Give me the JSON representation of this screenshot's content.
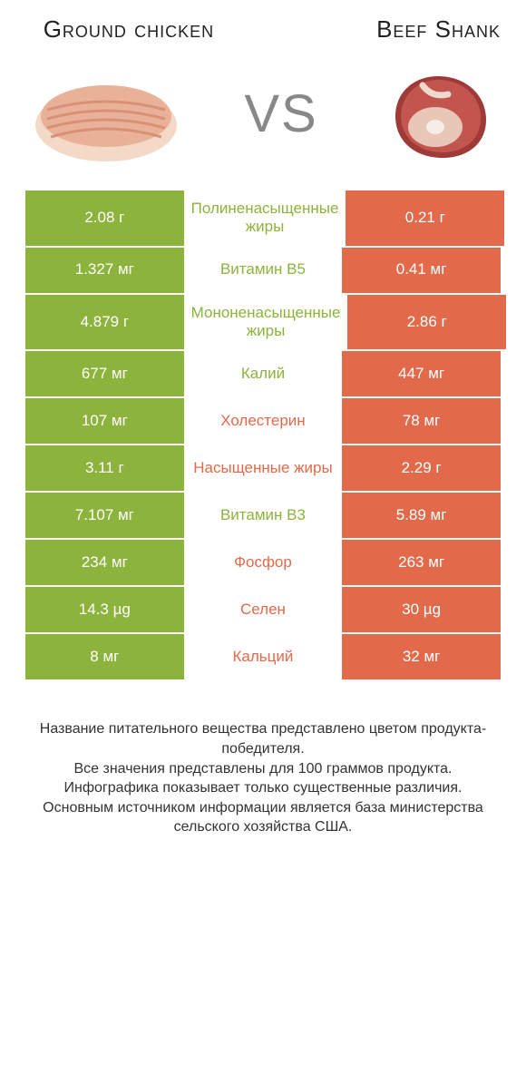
{
  "titles": {
    "left": "Ground chicken",
    "right": "Beef Shank"
  },
  "vs": "VS",
  "colors": {
    "green": "#8cb33c",
    "red": "#e26a4b",
    "bg": "#ffffff"
  },
  "rows": [
    {
      "left": "2.08 г",
      "mid": "Полиненасыщенные жиры",
      "right": "0.21 г",
      "winner": "left"
    },
    {
      "left": "1.327 мг",
      "mid": "Витамин B5",
      "right": "0.41 мг",
      "winner": "left"
    },
    {
      "left": "4.879 г",
      "mid": "Мононенасыщенные жиры",
      "right": "2.86 г",
      "winner": "left"
    },
    {
      "left": "677 мг",
      "mid": "Калий",
      "right": "447 мг",
      "winner": "left"
    },
    {
      "left": "107 мг",
      "mid": "Холестерин",
      "right": "78 мг",
      "winner": "right"
    },
    {
      "left": "3.11 г",
      "mid": "Насыщенные жиры",
      "right": "2.29 г",
      "winner": "right"
    },
    {
      "left": "7.107 мг",
      "mid": "Витамин B3",
      "right": "5.89 мг",
      "winner": "left"
    },
    {
      "left": "234 мг",
      "mid": "Фосфор",
      "right": "263 мг",
      "winner": "right"
    },
    {
      "left": "14.3 µg",
      "mid": "Селен",
      "right": "30 µg",
      "winner": "right"
    },
    {
      "left": "8 мг",
      "mid": "Кальций",
      "right": "32 мг",
      "winner": "right"
    }
  ],
  "footer": {
    "l1": "Название питательного вещества представлено цветом продукта-победителя.",
    "l2": "Все значения представлены для 100 граммов продукта.",
    "l3": "Инфографика показывает только существенные различия.",
    "l4": "Основным источником информации является база министерства сельского хозяйства США."
  }
}
